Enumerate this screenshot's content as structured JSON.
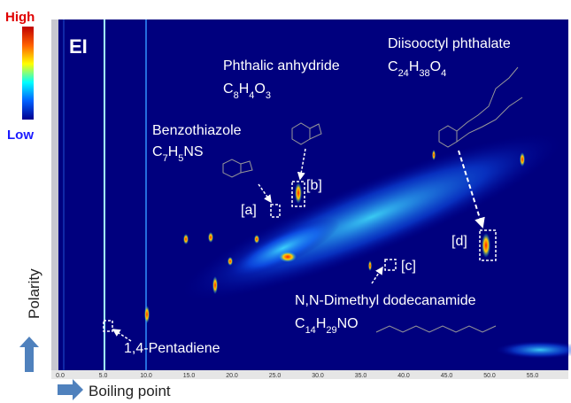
{
  "colorbar": {
    "high": "High",
    "low": "Low"
  },
  "mode": "EI",
  "compounds": [
    {
      "name": "Diisooctyl phthalate",
      "formula": "C24H38O4"
    },
    {
      "name": "Phthalic anhydride",
      "formula": "C8H4O3"
    },
    {
      "name": "Benzothiazole",
      "formula": "C7H5NS"
    },
    {
      "name": "N,N-Dimethyl dodecanamide",
      "formula": "C14H29NO"
    }
  ],
  "peaks": [
    "[a]",
    "[b]",
    "[c]",
    "[d]"
  ],
  "pentadiene": "1,4-Pentadiene",
  "axes": {
    "y": "Polarity",
    "x": "Boiling point",
    "xticks": [
      "0.0",
      "5.0",
      "10.0",
      "15.0",
      "20.0",
      "25.0",
      "30.0",
      "35.0",
      "40.0",
      "45.0",
      "50.0",
      "55.0"
    ]
  }
}
